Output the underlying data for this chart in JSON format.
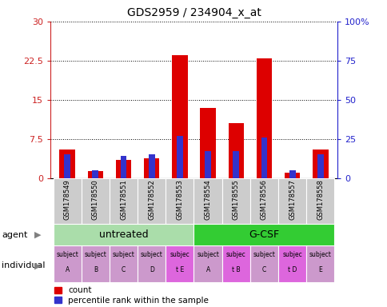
{
  "title": "GDS2959 / 234904_x_at",
  "samples": [
    "GSM178549",
    "GSM178550",
    "GSM178551",
    "GSM178552",
    "GSM178553",
    "GSM178554",
    "GSM178555",
    "GSM178556",
    "GSM178557",
    "GSM178558"
  ],
  "count_values": [
    5.5,
    1.3,
    3.5,
    3.8,
    23.5,
    13.5,
    10.5,
    23.0,
    1.0,
    5.5
  ],
  "percentile_values": [
    15,
    5,
    14,
    15,
    27,
    17,
    17,
    26,
    5,
    15
  ],
  "ylim_left": [
    0,
    30
  ],
  "ylim_right": [
    0,
    100
  ],
  "yticks_left": [
    0,
    7.5,
    15,
    22.5,
    30
  ],
  "yticks_right": [
    0,
    25,
    50,
    75,
    100
  ],
  "ytick_labels_left": [
    "0",
    "7.5",
    "15",
    "22.5",
    "30"
  ],
  "ytick_labels_right": [
    "0",
    "25",
    "50",
    "75",
    "100%"
  ],
  "bar_color": "#dd0000",
  "percentile_color": "#3333cc",
  "agent_groups": [
    {
      "label": "untreated",
      "start": 0,
      "end": 4,
      "color": "#aaddaa"
    },
    {
      "label": "G-CSF",
      "start": 5,
      "end": 9,
      "color": "#33cc33"
    }
  ],
  "individual_labels": [
    "subject\nA",
    "subject\nB",
    "subject\nC",
    "subject\nD",
    "subjec\nt E",
    "subject\nA",
    "subjec\nt B",
    "subject\nC",
    "subjec\nt D",
    "subject\nE"
  ],
  "individual_highlight": [
    4,
    6,
    8
  ],
  "individual_highlight_color": "#dd66dd",
  "individual_normal_color": "#cc99cc",
  "left_axis_color": "#cc2222",
  "right_axis_color": "#2222cc",
  "grid_color": "#000000",
  "bar_width": 0.55,
  "percentile_bar_width": 0.22,
  "background_color": "#ffffff",
  "sample_label_bg": "#cccccc",
  "fig_width": 4.85,
  "fig_height": 3.84,
  "fig_dpi": 100
}
